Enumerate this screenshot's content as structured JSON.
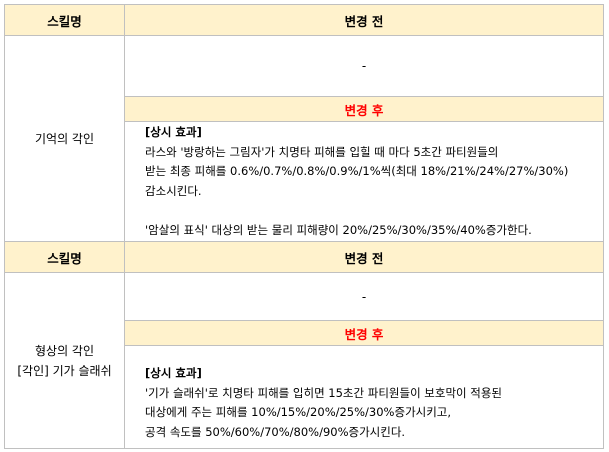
{
  "colors": {
    "header_bg": "#fff2cc",
    "after_label": "#ff0000",
    "border": "#c0c0c0"
  },
  "sections": [
    {
      "header_skill": "스킬명",
      "header_before": "변경 전",
      "skill_name": [
        "기억의 각인"
      ],
      "before": "-",
      "after_label": "변경 후",
      "after_title": "[상시 효과]",
      "after_lines": [
        "라스와 '방랑하는 그림자'가 치명타 피해를 입힐 때 마다 5초간 파티원들의",
        "받는 최종 피해를 0.6%/0.7%/0.8%/0.9%/1%씩(최대 18%/21%/24%/27%/30%)",
        "감소시킨다.",
        "",
        "'암살의 표식' 대상의 받는 물리 피해량이 20%/25%/30%/35%/40%증가한다."
      ]
    },
    {
      "header_skill": "스킬명",
      "header_before": "변경 전",
      "skill_name": [
        "형상의 각인",
        "[각인] 기가 슬래쉬"
      ],
      "before": "-",
      "after_label": "변경 후",
      "after_title": "[상시 효과]",
      "after_lines": [
        "'기가 슬래쉬'로 치명타 피해를 입히면 15초간 파티원들이 보호막이 적용된",
        "대상에게 주는 피해를 10%/15%/20%/25%/30%증가시키고,",
        "공격 속도를 50%/60%/70%/80%/90%증가시킨다."
      ]
    }
  ]
}
